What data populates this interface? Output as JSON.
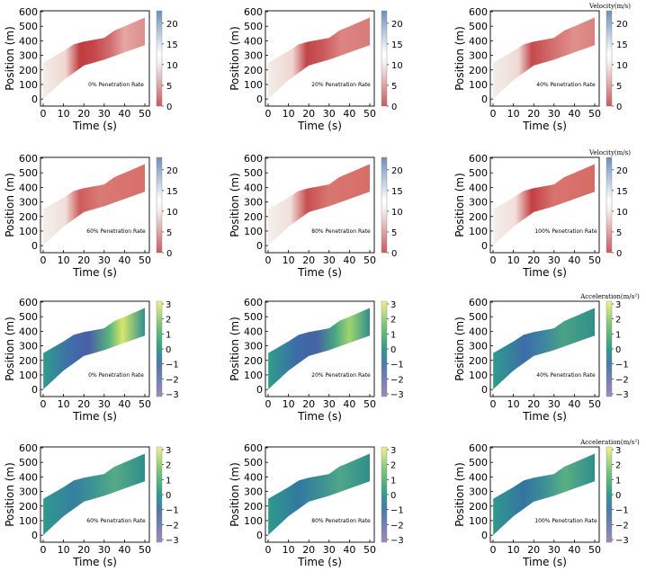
{
  "figure": {
    "axis": {
      "xlabel": "Time (s)",
      "ylabel": "Position (m)",
      "xticks": [
        "0",
        "10",
        "20",
        "30",
        "40",
        "50"
      ],
      "yticks": [
        "0",
        "100",
        "200",
        "300",
        "400",
        "500",
        "600"
      ]
    },
    "velocity_colorbar": {
      "title": "Velocity(m/s)",
      "ticks": [
        "0",
        "5",
        "10",
        "15",
        "20"
      ],
      "range": [
        0,
        23
      ],
      "low_color": "#c85a5f",
      "mid_color": "#f4f0ee",
      "high_color": "#6d8fb7"
    },
    "acceleration_colorbar": {
      "title": "Acceleration(m/s²)",
      "ticks": [
        "3",
        "2",
        "1",
        "0",
        "−1",
        "−2",
        "−3"
      ],
      "range": [
        -3,
        3
      ],
      "low_color": "#9c8ab8",
      "mid_color": "#2f9c8c",
      "high_color": "#f2f08a"
    }
  },
  "chart_data": [
    {
      "type": "heatmap",
      "quantity": "velocity",
      "annotation": "0% Penetration Rate",
      "colorbar_title": "",
      "xlim": [
        0,
        50
      ],
      "ylim": [
        0,
        600
      ]
    },
    {
      "type": "heatmap",
      "quantity": "velocity",
      "annotation": "20% Penetration Rate",
      "colorbar_title": "",
      "xlim": [
        0,
        50
      ],
      "ylim": [
        0,
        600
      ]
    },
    {
      "type": "heatmap",
      "quantity": "velocity",
      "annotation": "40% Penetration Rate",
      "colorbar_title": "Velocity(m/s)",
      "xlim": [
        0,
        50
      ],
      "ylim": [
        0,
        600
      ]
    },
    {
      "type": "heatmap",
      "quantity": "velocity",
      "annotation": "60% Penetration Rate",
      "colorbar_title": "",
      "xlim": [
        0,
        50
      ],
      "ylim": [
        0,
        600
      ]
    },
    {
      "type": "heatmap",
      "quantity": "velocity",
      "annotation": "80% Penetration Rate",
      "colorbar_title": "",
      "xlim": [
        0,
        50
      ],
      "ylim": [
        0,
        600
      ]
    },
    {
      "type": "heatmap",
      "quantity": "velocity",
      "annotation": "100% Penetration Rate",
      "colorbar_title": "Velocity(m/s)",
      "xlim": [
        0,
        50
      ],
      "ylim": [
        0,
        600
      ]
    },
    {
      "type": "heatmap",
      "quantity": "acceleration",
      "annotation": "0% Penetration Rate",
      "colorbar_title": "",
      "xlim": [
        0,
        50
      ],
      "ylim": [
        0,
        600
      ]
    },
    {
      "type": "heatmap",
      "quantity": "acceleration",
      "annotation": "20% Penetration Rate",
      "colorbar_title": "",
      "xlim": [
        0,
        50
      ],
      "ylim": [
        0,
        600
      ]
    },
    {
      "type": "heatmap",
      "quantity": "acceleration",
      "annotation": "40% Penetration Rate",
      "colorbar_title": "Acceleration(m/s²)",
      "xlim": [
        0,
        50
      ],
      "ylim": [
        0,
        600
      ]
    },
    {
      "type": "heatmap",
      "quantity": "acceleration",
      "annotation": "60% Penetration Rate",
      "colorbar_title": "",
      "xlim": [
        0,
        50
      ],
      "ylim": [
        0,
        600
      ]
    },
    {
      "type": "heatmap",
      "quantity": "acceleration",
      "annotation": "80% Penetration Rate",
      "colorbar_title": "",
      "xlim": [
        0,
        50
      ],
      "ylim": [
        0,
        600
      ]
    },
    {
      "type": "heatmap",
      "quantity": "acceleration",
      "annotation": "100% Penetration Rate",
      "colorbar_title": "Acceleration(m/s²)",
      "xlim": [
        0,
        50
      ],
      "ylim": [
        0,
        600
      ]
    }
  ]
}
